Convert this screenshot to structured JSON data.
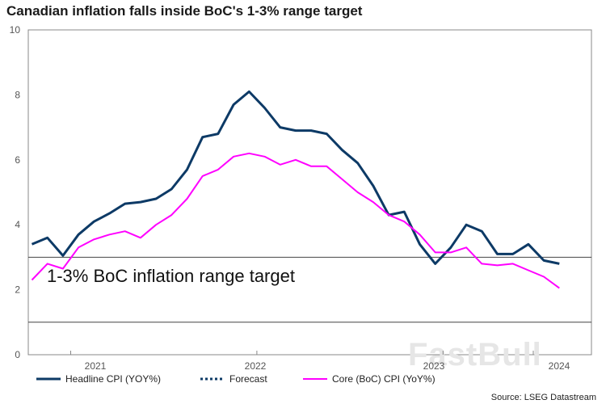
{
  "chart_data": {
    "type": "line",
    "title": "Canadian inflation falls inside BoC's 1-3% range target",
    "xlabel": "",
    "ylabel": "",
    "ylim": [
      0,
      10
    ],
    "yticks": [
      "0",
      "2",
      "4",
      "6",
      "8",
      "10"
    ],
    "xtick_labels": [
      "2021",
      "2022",
      "2023",
      "2024"
    ],
    "start": "2020-10",
    "reference_lines": [
      1,
      3
    ],
    "band_label": "1-3% BoC inflation range target",
    "series": [
      {
        "name": "Headline CPI (YOY%)",
        "color": "#0d3a66",
        "values": [
          3.4,
          3.6,
          3.05,
          3.7,
          4.1,
          4.35,
          4.65,
          4.7,
          4.8,
          5.1,
          5.7,
          6.7,
          6.8,
          7.7,
          8.1,
          7.6,
          7.0,
          6.9,
          6.9,
          6.8,
          6.3,
          5.9,
          5.2,
          4.3,
          4.4,
          3.4,
          2.8,
          3.3,
          4.0,
          3.8,
          3.1,
          3.1,
          3.4,
          2.9,
          2.8
        ]
      },
      {
        "name": "Forecast",
        "color": "#0d3a66",
        "style": "dotted",
        "values": []
      },
      {
        "name": "Core (BoC) CPI (YoY%)",
        "color": "#ff00ff",
        "values": [
          2.3,
          2.8,
          2.65,
          3.3,
          3.55,
          3.7,
          3.8,
          3.6,
          4.0,
          4.3,
          4.8,
          5.5,
          5.7,
          6.1,
          6.2,
          6.1,
          5.85,
          6.0,
          5.8,
          5.8,
          5.4,
          5.0,
          4.7,
          4.3,
          4.1,
          3.7,
          3.15,
          3.15,
          3.3,
          2.8,
          2.75,
          2.8,
          2.6,
          2.4,
          2.05
        ]
      }
    ],
    "source": "Source: LSEG Datastream",
    "watermark": "FastBull"
  }
}
